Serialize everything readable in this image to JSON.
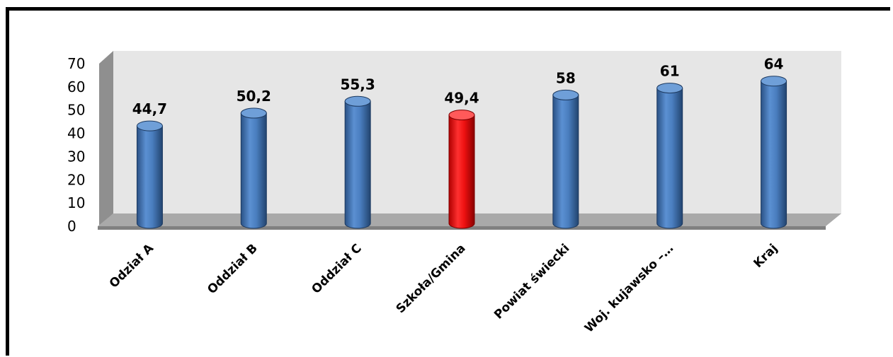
{
  "chart_data": {
    "type": "bar",
    "style": "3d-cylinder",
    "categories": [
      "Odział A",
      "Oddział B",
      "Oddział C",
      "Szkoła/Gmina",
      "Powiat świecki",
      "Woj. kujawsko –…",
      "Kraj"
    ],
    "values": [
      44.7,
      50.2,
      55.3,
      49.4,
      58,
      61,
      64
    ],
    "data_labels": [
      "44,7",
      "50,2",
      "55,3",
      "49,4",
      "58",
      "61",
      "64"
    ],
    "yticks": [
      "0",
      "10",
      "20",
      "30",
      "40",
      "50",
      "60",
      "70"
    ],
    "ylim": [
      0,
      70
    ],
    "highlight_index": 3,
    "colors": {
      "bar": "#4a7ebf",
      "highlight": "#ee1111",
      "wall": "#e6e6e6",
      "floor": "#a9a9a9",
      "frame": "#000000"
    },
    "title": "",
    "xlabel": "",
    "ylabel": "",
    "legend": "none",
    "grid": false
  }
}
